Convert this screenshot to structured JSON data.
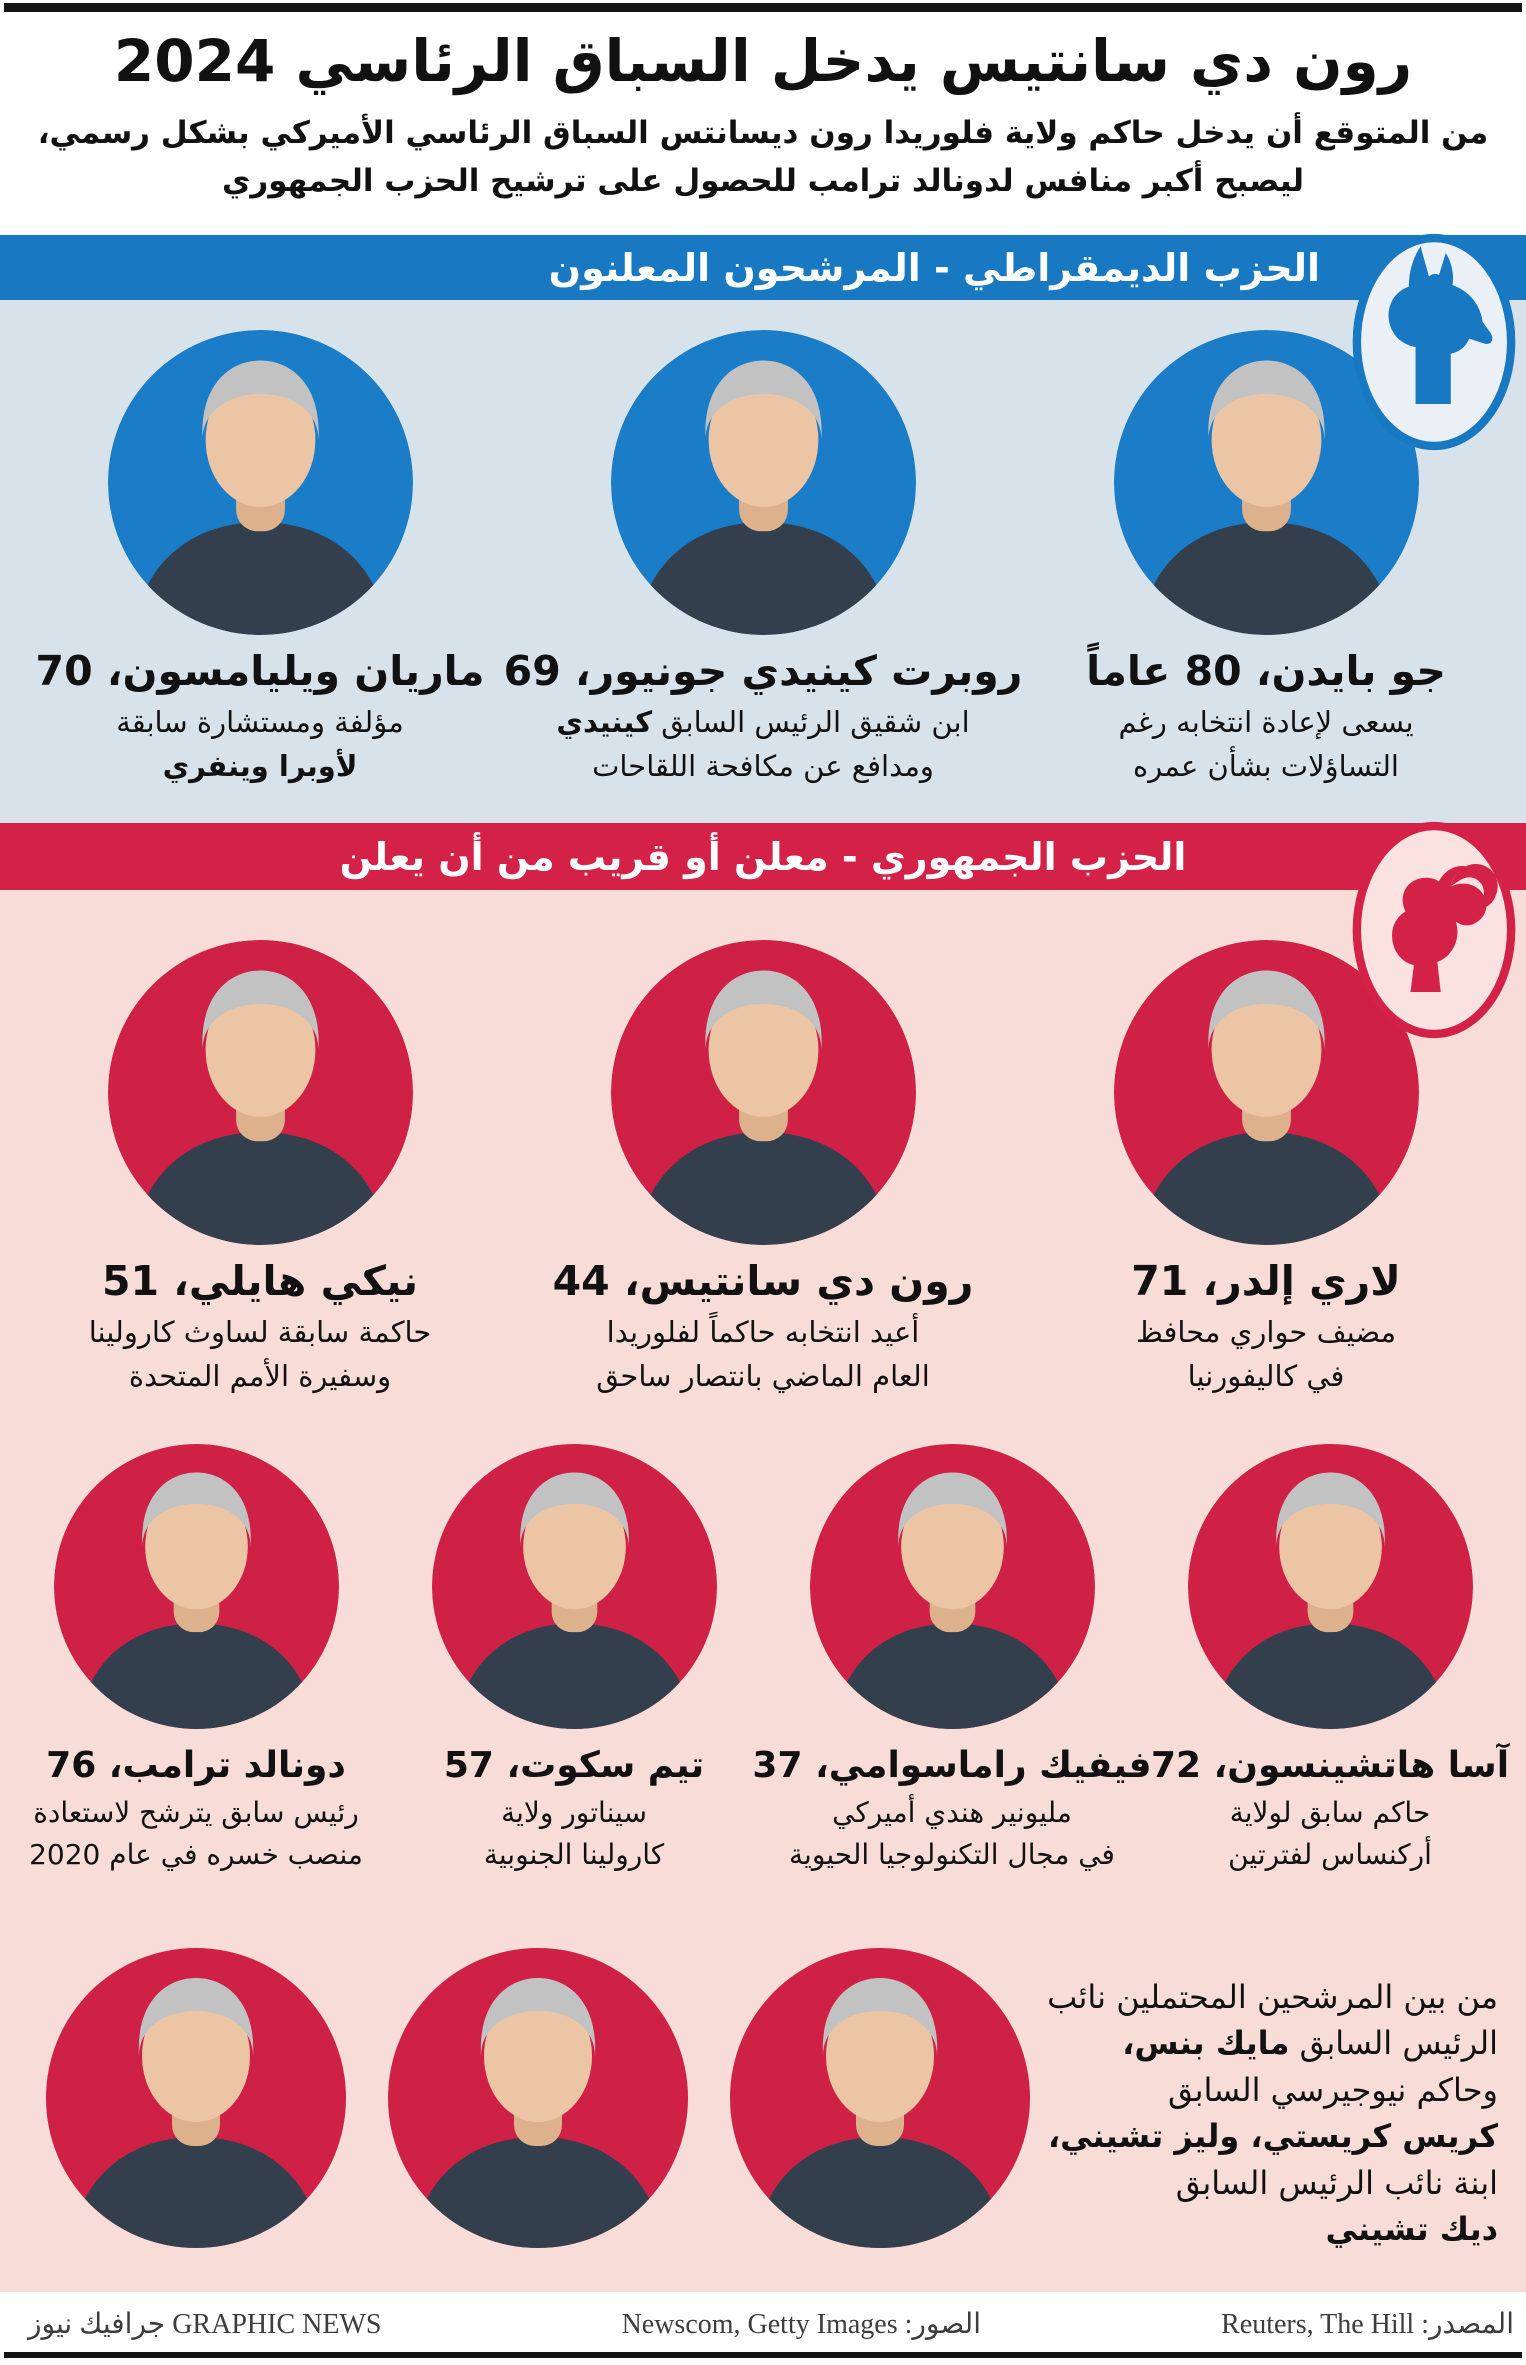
{
  "header": {
    "title": "رون دي سانتيس يدخل السباق الرئاسي 2024",
    "subtitle_lines": [
      "من المتوقع أن يدخل حاكم ولاية فلوريدا رون ديسانتس السباق الرئاسي الأميركي بشكل رسمي،",
      "ليصبح أكبر منافس لدونالد ترامب للحصول على ترشيح الحزب الجمهوري"
    ]
  },
  "colors": {
    "dem_banner": "#1878c1",
    "dem_section_bg": "#d8e2ea",
    "dem_photo_bg": "#1b7cc7",
    "rep_banner": "#d42148",
    "rep_section_bg": "#f8dcd8",
    "rep_photo_bg": "#cf2145",
    "badge_dem_fill": "#eaf0f5",
    "badge_rep_fill": "#f9e2df",
    "skin": "#ecc6a4",
    "skin_shade": "#ddb18c",
    "hair": "#c2c2c2",
    "suit": "#333f4d"
  },
  "democratic": {
    "banner": "الحزب الديمقراطي - المرشحون المعلنون",
    "party_icon": "donkey-icon",
    "candidates": [
      {
        "name": "جو بايدن، 80 عاماً",
        "desc": [
          [
            {
              "t": "يسعى لإعادة انتخابه رغم",
              "b": false
            }
          ],
          [
            {
              "t": "التساؤلات بشأن عمره",
              "b": false
            }
          ]
        ]
      },
      {
        "name": "روبرت كينيدي جونيور، 69",
        "desc": [
          [
            {
              "t": "ابن شقيق الرئيس السابق ",
              "b": false
            },
            {
              "t": "كينيدي",
              "b": true
            }
          ],
          [
            {
              "t": "ومدافع عن مكافحة اللقاحات",
              "b": false
            }
          ]
        ]
      },
      {
        "name": "ماريان ويليامسون، 70",
        "desc": [
          [
            {
              "t": "مؤلفة ومستشارة سابقة",
              "b": false
            }
          ],
          [
            {
              "t": "لأوبرا وينفري",
              "b": true
            }
          ]
        ]
      }
    ]
  },
  "republican": {
    "banner": "الحزب الجمهوري - معلن أو قريب من أن يعلن",
    "party_icon": "elephant-icon",
    "row1": [
      {
        "name": "لاري إلدر، 71",
        "desc": [
          [
            {
              "t": "مضيف حواري محافظ",
              "b": false
            }
          ],
          [
            {
              "t": "في كاليفورنيا",
              "b": false
            }
          ]
        ]
      },
      {
        "name": "رون دي سانتيس، 44",
        "desc": [
          [
            {
              "t": "أعيد انتخابه حاكماً لفلوريدا",
              "b": false
            }
          ],
          [
            {
              "t": "العام الماضي بانتصار ساحق",
              "b": false
            }
          ]
        ]
      },
      {
        "name": "نيكي هايلي، 51",
        "desc": [
          [
            {
              "t": "حاكمة سابقة لساوث كارولينا",
              "b": false
            }
          ],
          [
            {
              "t": "وسفيرة الأمم المتحدة",
              "b": false
            }
          ]
        ]
      }
    ],
    "row2": [
      {
        "name": "آسا هاتشينسون، 72",
        "desc": [
          [
            {
              "t": "حاكم سابق لولاية",
              "b": false
            }
          ],
          [
            {
              "t": "أركنساس لفترتين",
              "b": false
            }
          ]
        ]
      },
      {
        "name": "فيفيك راماسوامي، 37",
        "desc": [
          [
            {
              "t": "مليونير هندي أميركي",
              "b": false
            }
          ],
          [
            {
              "t": "في مجال التكنولوجيا الحيوية",
              "b": false
            }
          ]
        ]
      },
      {
        "name": "تيم سكوت، 57",
        "desc": [
          [
            {
              "t": "سيناتور ولاية",
              "b": false
            }
          ],
          [
            {
              "t": "كارولينا الجنوبية",
              "b": false
            }
          ]
        ]
      },
      {
        "name": "دونالد ترامب، 76",
        "desc": [
          [
            {
              "t": "رئيس سابق يترشح لاستعادة",
              "b": false
            }
          ],
          [
            {
              "t": "منصب خسره في عام 2020",
              "b": false
            }
          ]
        ]
      }
    ],
    "potential_portrait_count": 3,
    "note_lines": [
      [
        {
          "t": "من بين المرشحين المحتملين نائب",
          "b": false
        }
      ],
      [
        {
          "t": "الرئيس السابق ",
          "b": false
        },
        {
          "t": "مايك بنس،",
          "b": true
        }
      ],
      [
        {
          "t": "وحاكم نيوجيرسي السابق",
          "b": false
        }
      ],
      [
        {
          "t": "كريس كريستي، وليز تشيني،",
          "b": true
        }
      ],
      [
        {
          "t": "ابنة نائب الرئيس السابق",
          "b": false
        }
      ],
      [
        {
          "t": "ديك تشيني",
          "b": true
        }
      ]
    ]
  },
  "footer": {
    "source": "المصدر: Reuters, The Hill",
    "photos": "الصور: Newscom, Getty Images",
    "brand": "جرافيك نيوز GRAPHIC NEWS"
  }
}
